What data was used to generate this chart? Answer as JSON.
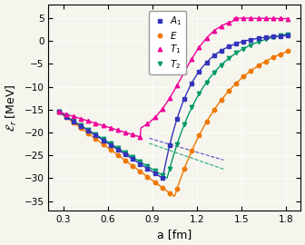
{
  "xlabel": "a [fm]",
  "ylabel": "$\\mathcal{E}_r$ [MeV]",
  "xlim": [
    0.2,
    1.9
  ],
  "ylim": [
    -37,
    8
  ],
  "xticks": [
    0.3,
    0.6,
    0.9,
    1.2,
    1.5,
    1.8
  ],
  "yticks": [
    5,
    0,
    -5,
    -10,
    -15,
    -20,
    -25,
    -30,
    -35
  ],
  "colors": {
    "A1": "#3333bb",
    "E": "#ee7700",
    "T1": "#ee0099",
    "T2": "#009966"
  },
  "background": "#f5f5ee"
}
